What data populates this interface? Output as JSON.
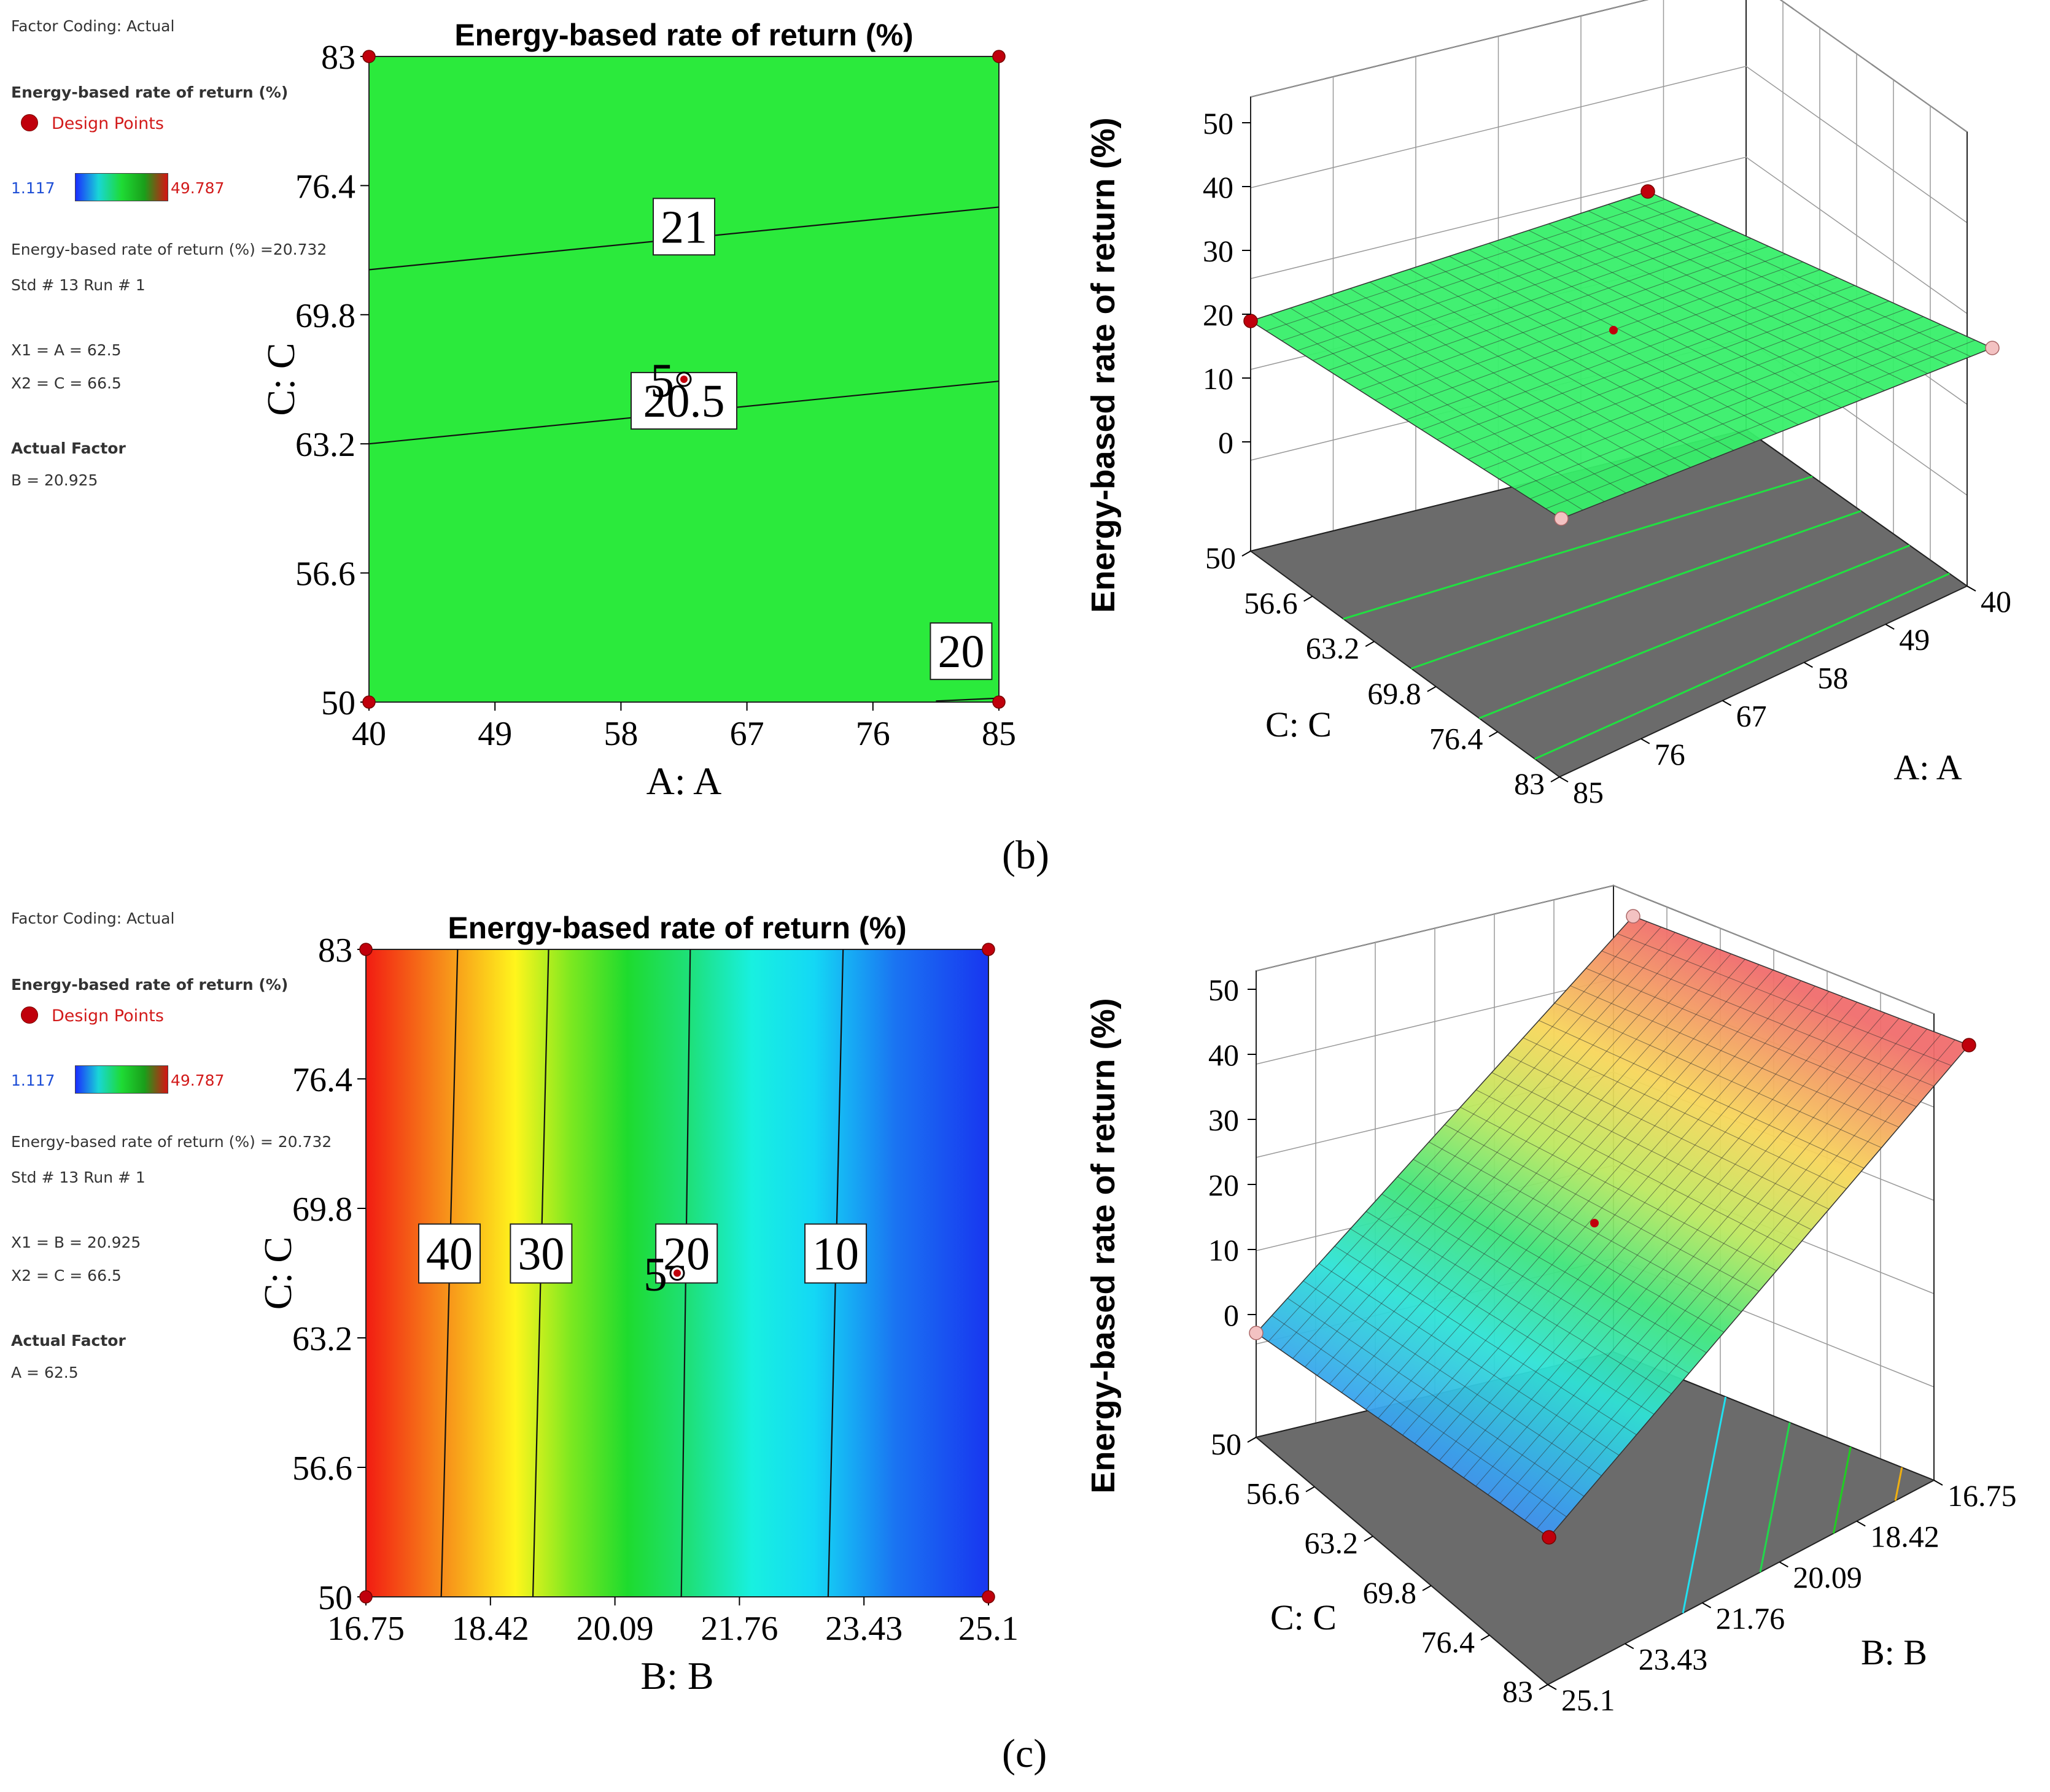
{
  "panel_b": {
    "sidebar": {
      "coding": "Factor Coding: Actual",
      "response": "Energy-based rate of return  (%)",
      "design_points": "Design Points",
      "cmin": "1.117",
      "cmax": "49.787",
      "value": "Energy-based rate of return (%) =20.732",
      "std_run": "Std # 13 Run # 1",
      "x1": "X1 = A = 62.5",
      "x2": "X2 = C = 66.5",
      "actual_factor": "Actual Factor",
      "actual_value": "B = 20.925"
    },
    "label": "(b)"
  },
  "panel_c": {
    "sidebar": {
      "coding": "Factor Coding: Actual",
      "response": "Energy-based rate of return (%)",
      "design_points": "Design Points",
      "cmin": "1.117",
      "cmax": "49.787",
      "value": "Energy-based rate of return (%) = 20.732",
      "std_run": "Std # 13 Run # 1",
      "x1": "X1 = B = 20.925",
      "x2": "X2 = C = 66.5",
      "actual_factor": "Actual Factor",
      "actual_value": "A = 62.5"
    },
    "label": "(c)"
  },
  "colors": {
    "contour_green": "#2bea3c",
    "design_point": "#c0000c",
    "floor_gray": "#6b6b6b"
  },
  "chart_data": [
    {
      "id": "b-contour",
      "type": "contour",
      "title": "Energy-based rate of return (%)",
      "xlabel": "A: A",
      "ylabel": "C: C",
      "xticks": [
        "40",
        "49",
        "58",
        "67",
        "76",
        "85"
      ],
      "yticks": [
        "50",
        "56.6",
        "63.2",
        "69.8",
        "76.4",
        "83"
      ],
      "xlim": [
        40,
        85
      ],
      "ylim": [
        50,
        83
      ],
      "contours": [
        {
          "label": "21",
          "line": [
            [
              40,
              72.1
            ],
            [
              85,
              75.3
            ]
          ],
          "label_at": [
            62.5,
            74.3
          ]
        },
        {
          "label": "20.5",
          "line": [
            [
              40,
              63.2
            ],
            [
              85,
              66.4
            ]
          ],
          "label_at": [
            62.5,
            65.4
          ]
        },
        {
          "label": "20",
          "line": [
            [
              80.5,
              50.05
            ],
            [
              85,
              50.2
            ]
          ],
          "label_at": [
            82.3,
            52.6
          ]
        }
      ],
      "center_point": {
        "x": 62.5,
        "y": 66.5,
        "label": "5"
      },
      "design_points": [
        [
          40,
          50
        ],
        [
          85,
          50
        ],
        [
          40,
          83
        ],
        [
          85,
          83
        ]
      ]
    },
    {
      "id": "b-surface",
      "type": "surface3d",
      "zlabel": "Energy-based rate of return (%)",
      "ylabel_floor": "C: C",
      "xlabel_floor": "A: A",
      "zticks": [
        "0",
        "10",
        "20",
        "30",
        "40",
        "50"
      ],
      "cticks": [
        "50",
        "56.6",
        "63.2",
        "69.8",
        "76.4",
        "83"
      ],
      "aticks": [
        "40",
        "49",
        "58",
        "67",
        "76",
        "85"
      ],
      "surface_value_range": [
        20.0,
        21.2
      ]
    },
    {
      "id": "c-contour",
      "type": "contour",
      "title": "Energy-based rate of return (%)",
      "xlabel": "B: B",
      "ylabel": "C: C",
      "xticks": [
        "16.75",
        "18.42",
        "20.09",
        "21.76",
        "23.43",
        "25.1"
      ],
      "yticks": [
        "50",
        "56.6",
        "63.2",
        "69.8",
        "76.4",
        "83"
      ],
      "xlim": [
        16.75,
        25.1
      ],
      "ylim": [
        50,
        83
      ],
      "contours": [
        {
          "label": "40",
          "line": [
            [
              17.76,
              50
            ],
            [
              17.98,
              83
            ]
          ],
          "label_at": [
            17.87,
            67.5
          ]
        },
        {
          "label": "30",
          "line": [
            [
              18.99,
              50
            ],
            [
              19.2,
              83
            ]
          ],
          "label_at": [
            19.1,
            67.5
          ]
        },
        {
          "label": "20",
          "line": [
            [
              20.98,
              50
            ],
            [
              21.1,
              83
            ]
          ],
          "label_at": [
            21.05,
            67.5
          ]
        },
        {
          "label": "10",
          "line": [
            [
              22.95,
              50
            ],
            [
              23.15,
              83
            ]
          ],
          "label_at": [
            23.05,
            67.5
          ]
        }
      ],
      "center_point": {
        "x": 20.925,
        "y": 66.5,
        "label": "5"
      },
      "design_points": [
        [
          16.75,
          50
        ],
        [
          25.1,
          50
        ],
        [
          16.75,
          83
        ],
        [
          25.1,
          83
        ]
      ]
    },
    {
      "id": "c-surface",
      "type": "surface3d",
      "zlabel": "Energy-based rate of return (%)",
      "ylabel_floor": "C: C",
      "xlabel_floor": "B: B",
      "zticks": [
        "0",
        "10",
        "20",
        "30",
        "40",
        "50"
      ],
      "cticks": [
        "50",
        "56.6",
        "63.2",
        "69.8",
        "76.4",
        "83"
      ],
      "bticks": [
        "16.75",
        "18.42",
        "20.09",
        "21.76",
        "23.43",
        "25.1"
      ],
      "surface_value_range": [
        1.117,
        49.787
      ]
    }
  ]
}
